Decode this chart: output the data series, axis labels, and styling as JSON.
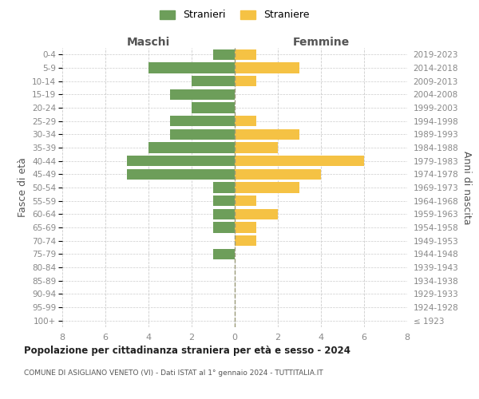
{
  "age_groups": [
    "100+",
    "95-99",
    "90-94",
    "85-89",
    "80-84",
    "75-79",
    "70-74",
    "65-69",
    "60-64",
    "55-59",
    "50-54",
    "45-49",
    "40-44",
    "35-39",
    "30-34",
    "25-29",
    "20-24",
    "15-19",
    "10-14",
    "5-9",
    "0-4"
  ],
  "birth_years": [
    "≤ 1923",
    "1924-1928",
    "1929-1933",
    "1934-1938",
    "1939-1943",
    "1944-1948",
    "1949-1953",
    "1954-1958",
    "1959-1963",
    "1964-1968",
    "1969-1973",
    "1974-1978",
    "1979-1983",
    "1984-1988",
    "1989-1993",
    "1994-1998",
    "1999-2003",
    "2004-2008",
    "2009-2013",
    "2014-2018",
    "2019-2023"
  ],
  "males": [
    0,
    0,
    0,
    0,
    0,
    1,
    0,
    1,
    1,
    1,
    1,
    5,
    5,
    4,
    3,
    3,
    2,
    3,
    2,
    4,
    1
  ],
  "females": [
    0,
    0,
    0,
    0,
    0,
    0,
    1,
    1,
    2,
    1,
    3,
    4,
    6,
    2,
    3,
    1,
    0,
    0,
    1,
    3,
    1
  ],
  "male_color": "#6d9e5a",
  "female_color": "#f5c244",
  "male_label": "Stranieri",
  "female_label": "Straniere",
  "title": "Popolazione per cittadinanza straniera per età e sesso - 2024",
  "subtitle": "COMUNE DI ASIGLIANO VENETO (VI) - Dati ISTAT al 1° gennaio 2024 - TUTTITALIA.IT",
  "xlabel_left": "Maschi",
  "xlabel_right": "Femmine",
  "ylabel_left": "Fasce di età",
  "ylabel_right": "Anni di nascita",
  "xlim": 8,
  "background_color": "#ffffff",
  "grid_color": "#cccccc",
  "bar_height": 0.8,
  "tick_color": "#888888",
  "axis_label_color": "#555555"
}
